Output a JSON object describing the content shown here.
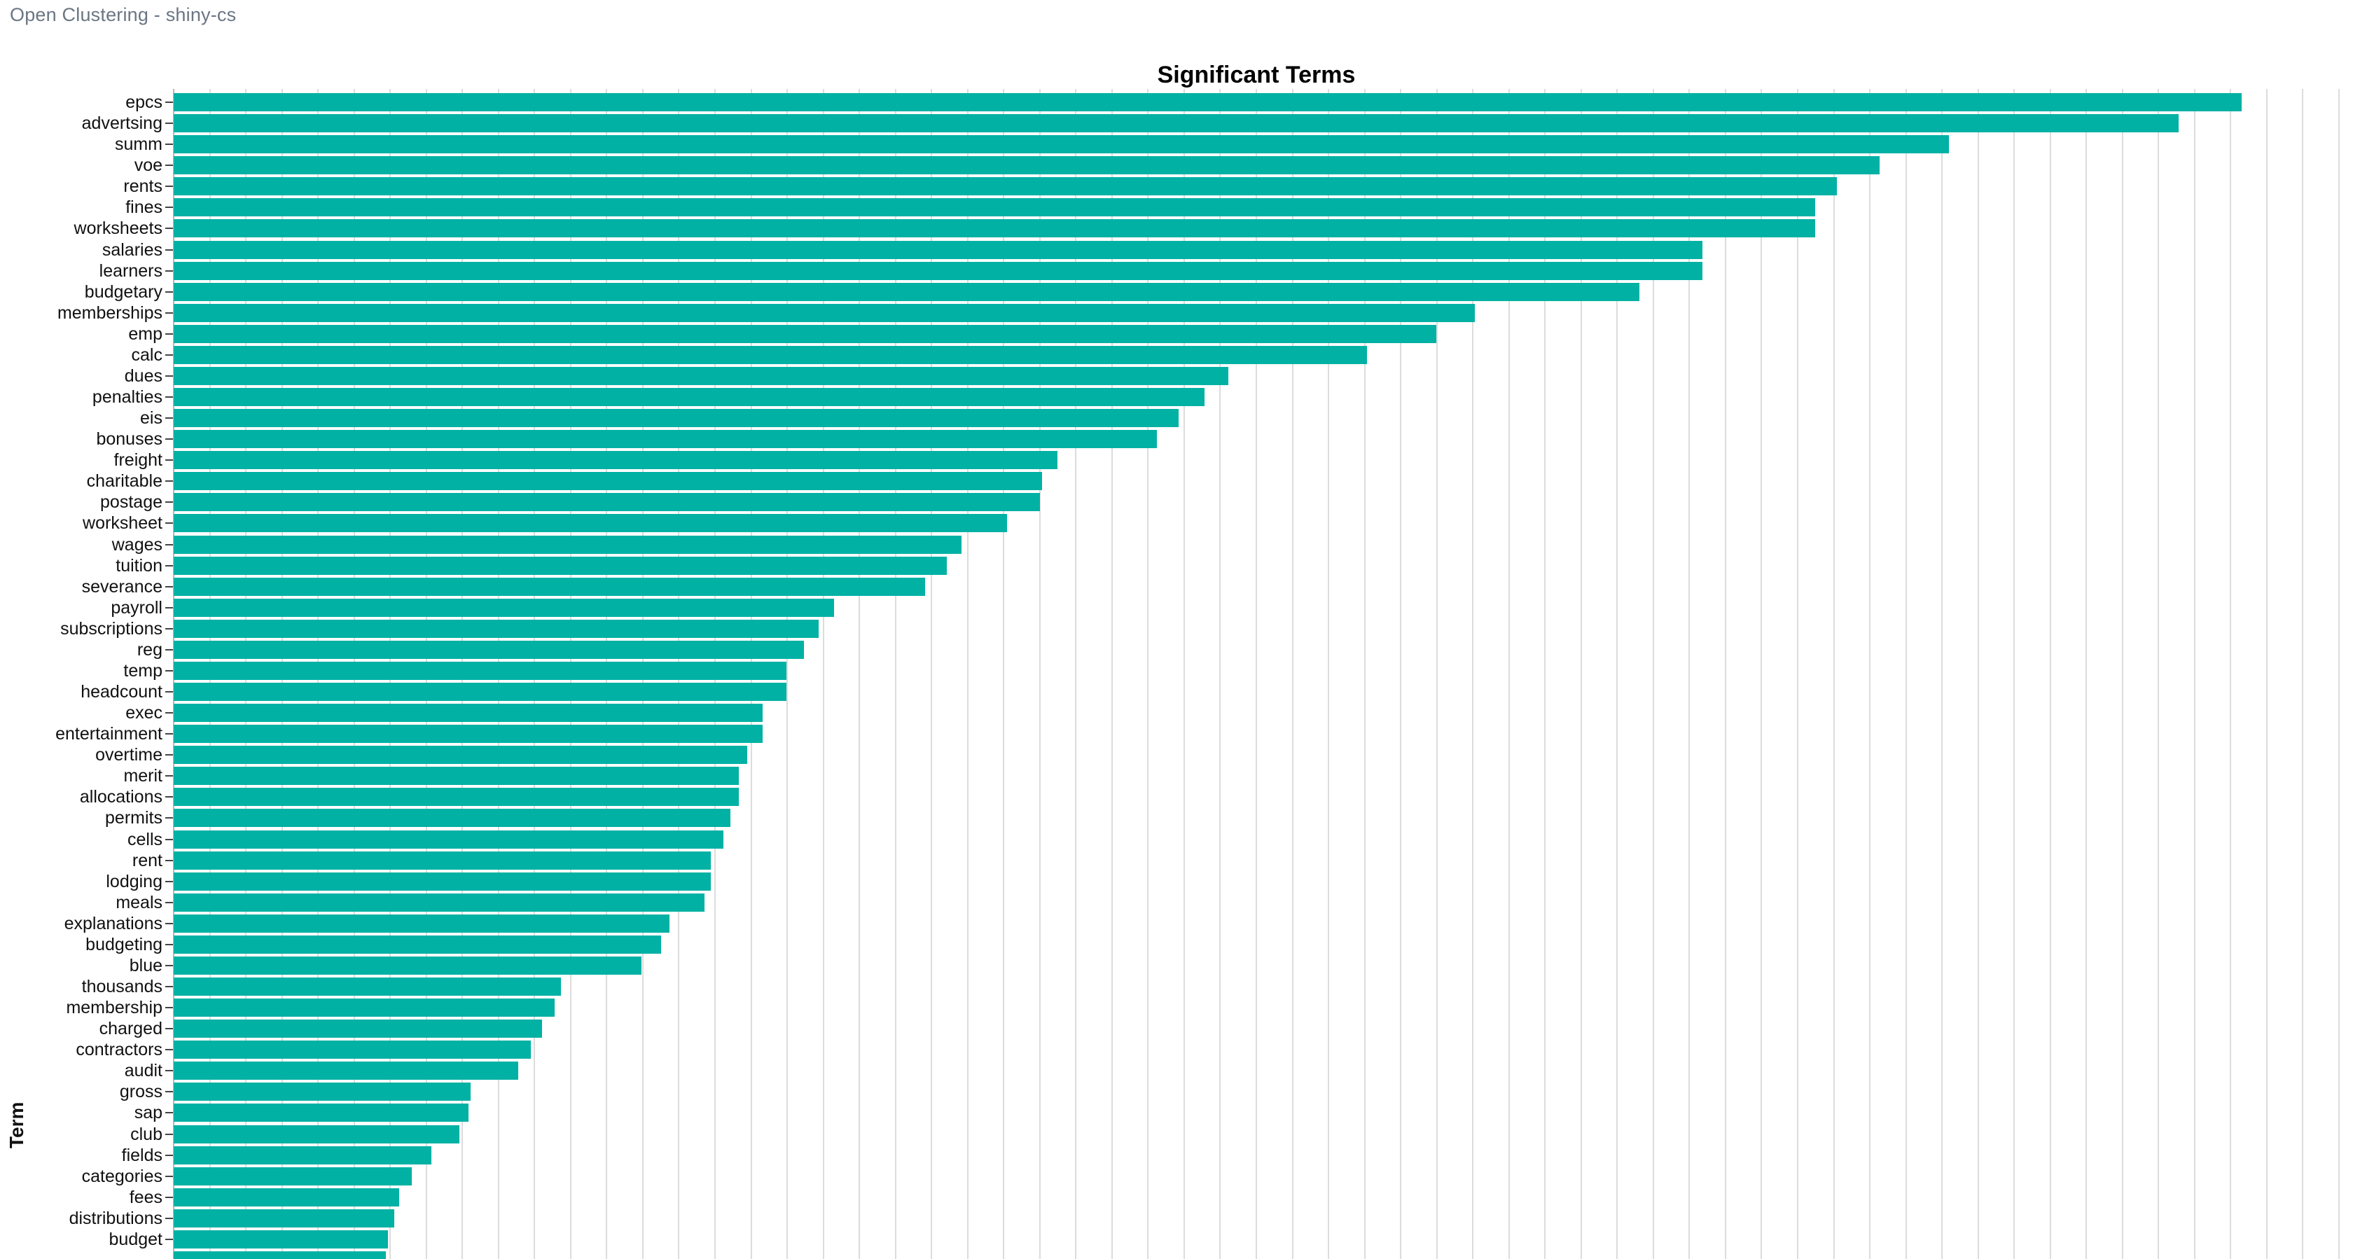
{
  "header": {
    "title": "Open Clustering - shiny-cs"
  },
  "chart_data": {
    "type": "bar",
    "orientation": "horizontal",
    "title": "Significant Terms",
    "xlabel": "",
    "ylabel": "Term",
    "legend": "none",
    "grid": "vertical-only",
    "n_vertical_gridlines": 60,
    "x_tick_labels_visible": false,
    "note_units": "bar lengths given as percent of visible plot width; x-axis scale labels are cut off in the screenshot",
    "bar_color": "#00b1a4",
    "grid_color": "#dcdcdc",
    "axis_line_color": "#b6b6b6",
    "categories": [
      "epcs",
      "advertsing",
      "summ",
      "voe",
      "rents",
      "fines",
      "worksheets",
      "salaries",
      "learners",
      "budgetary",
      "memberships",
      "emp",
      "calc",
      "dues",
      "penalties",
      "eis",
      "bonuses",
      "freight",
      "charitable",
      "postage",
      "worksheet",
      "wages",
      "tuition",
      "severance",
      "payroll",
      "subscriptions",
      "reg",
      "temp",
      "headcount",
      "exec",
      "entertainment",
      "overtime",
      "merit",
      "allocations",
      "permits",
      "cells",
      "rent",
      "lodging",
      "meals",
      "explanations",
      "budgeting",
      "blue",
      "thousands",
      "membership",
      "charged",
      "contractors",
      "audit",
      "gross",
      "sap",
      "club",
      "fields",
      "categories",
      "fees",
      "distributions",
      "budget",
      ""
    ],
    "values": [
      95.5,
      92.6,
      82.0,
      78.8,
      76.8,
      75.8,
      75.8,
      70.6,
      70.6,
      67.7,
      60.1,
      58.3,
      55.1,
      48.7,
      47.6,
      46.4,
      45.4,
      40.8,
      40.1,
      40.0,
      38.5,
      36.4,
      35.7,
      34.7,
      30.5,
      29.8,
      29.1,
      28.3,
      28.3,
      27.2,
      27.2,
      26.5,
      26.1,
      26.1,
      25.7,
      25.4,
      24.8,
      24.8,
      24.5,
      22.9,
      22.5,
      21.6,
      17.9,
      17.6,
      17.0,
      16.5,
      15.9,
      13.7,
      13.6,
      13.2,
      11.9,
      11.0,
      10.4,
      10.2,
      9.9,
      9.8
    ]
  }
}
